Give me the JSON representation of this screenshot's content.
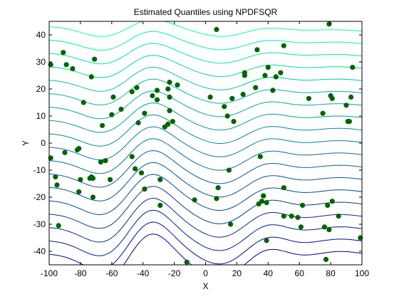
{
  "chart_data": {
    "type": "scatter",
    "title": "Estimated Quantiles using NPDFSQR",
    "xlabel": "X",
    "ylabel": "Y",
    "xlim": [
      -100,
      100
    ],
    "ylim": [
      -45,
      45
    ],
    "xticks": [
      -100,
      -80,
      -60,
      -40,
      -20,
      0,
      20,
      40,
      60,
      80,
      100
    ],
    "yticks": [
      -40,
      -30,
      -20,
      -10,
      0,
      10,
      20,
      30,
      40
    ],
    "grid": false,
    "legend": "none",
    "marker_color": "#006400",
    "contour_color_low": "#00008f",
    "contour_color_high": "#00ffb0",
    "points": [
      [
        -99,
        29
      ],
      [
        -99,
        -5.5
      ],
      [
        -96,
        -12.5
      ],
      [
        -95,
        -15.5
      ],
      [
        -94,
        -30.5
      ],
      [
        -91,
        33.5
      ],
      [
        -89,
        29
      ],
      [
        -90,
        -3.5
      ],
      [
        -85,
        27.5
      ],
      [
        -82,
        -2.5
      ],
      [
        -81,
        -2
      ],
      [
        -81,
        -18
      ],
      [
        -80,
        -13.5
      ],
      [
        -78,
        15
      ],
      [
        -74,
        -13
      ],
      [
        -73,
        -12.5
      ],
      [
        -72,
        -20
      ],
      [
        -72,
        -13
      ],
      [
        -71,
        31
      ],
      [
        -73,
        24.5
      ],
      [
        -67,
        -7
      ],
      [
        -66,
        6.5
      ],
      [
        -64,
        -6.5
      ],
      [
        -61,
        -13.5
      ],
      [
        -60,
        10.5
      ],
      [
        -59,
        17
      ],
      [
        -54,
        12.5
      ],
      [
        -47,
        19
      ],
      [
        -47,
        -5
      ],
      [
        -45,
        -9.5
      ],
      [
        -44,
        20.5
      ],
      [
        -43,
        7.5
      ],
      [
        -41,
        -11
      ],
      [
        -39,
        11
      ],
      [
        -39,
        -17
      ],
      [
        -34,
        17.5
      ],
      [
        -31,
        19.5
      ],
      [
        -31,
        16
      ],
      [
        -29,
        -13.5
      ],
      [
        -29,
        -23
      ],
      [
        -26,
        6
      ],
      [
        -24,
        20
      ],
      [
        -24,
        7
      ],
      [
        -23,
        17
      ],
      [
        -23,
        22.5
      ],
      [
        -23,
        12
      ],
      [
        -21,
        8
      ],
      [
        -18,
        21.5
      ],
      [
        -12,
        -44
      ],
      [
        -7,
        -21
      ],
      [
        3,
        17
      ],
      [
        7,
        42
      ],
      [
        7,
        -20.5
      ],
      [
        8,
        -16.5
      ],
      [
        12,
        13.5
      ],
      [
        14,
        10
      ],
      [
        15,
        -10
      ],
      [
        16,
        -30
      ],
      [
        17,
        16.5
      ],
      [
        18,
        8
      ],
      [
        24,
        18
      ],
      [
        25,
        26
      ],
      [
        25,
        25
      ],
      [
        32,
        20.5
      ],
      [
        33,
        34.5
      ],
      [
        34,
        -22.5
      ],
      [
        35,
        -5
      ],
      [
        36,
        -21.5
      ],
      [
        37,
        -19.5
      ],
      [
        38,
        25
      ],
      [
        37,
        -19.5
      ],
      [
        39,
        -36
      ],
      [
        39,
        -22
      ],
      [
        40,
        28
      ],
      [
        43,
        19.5
      ],
      [
        45,
        24.5
      ],
      [
        48,
        26
      ],
      [
        50,
        36
      ],
      [
        50,
        -16.5
      ],
      [
        50,
        -27
      ],
      [
        55,
        -27
      ],
      [
        59,
        -27.5
      ],
      [
        61,
        -31
      ],
      [
        62,
        -23
      ],
      [
        66,
        16.5
      ],
      [
        75,
        11
      ],
      [
        76,
        -31
      ],
      [
        77,
        -43
      ],
      [
        78,
        -23
      ],
      [
        79,
        44
      ],
      [
        79,
        -32
      ],
      [
        80,
        17.5
      ],
      [
        81,
        -21.5
      ],
      [
        81,
        16.5
      ],
      [
        85,
        -27
      ],
      [
        90,
        14
      ],
      [
        91,
        8
      ],
      [
        92,
        8
      ],
      [
        93,
        17
      ],
      [
        94,
        28
      ],
      [
        99,
        -35
      ]
    ]
  }
}
